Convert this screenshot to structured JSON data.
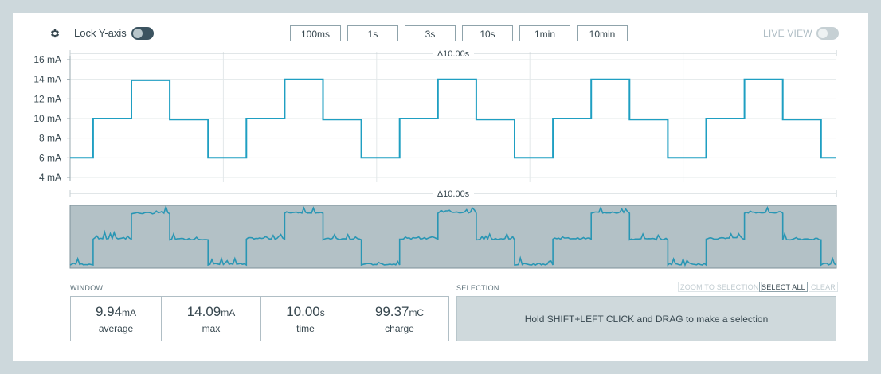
{
  "toolbar": {
    "lock_label": "Lock Y-axis",
    "live_label": "LIVE VIEW",
    "window_buttons": [
      "100ms",
      "1s",
      "3s",
      "10s",
      "1min",
      "10min"
    ],
    "lock_enabled": true,
    "live_enabled": false
  },
  "colors": {
    "trace": "#1f9fc2",
    "minimap_bg": "#b3c1c6",
    "page_bg": "#cdd8dc"
  },
  "chart_data": {
    "type": "line",
    "ylabel": "",
    "y_ticks": [
      "16 mA",
      "14 mA",
      "12 mA",
      "10 mA",
      "8 mA",
      "6 mA",
      "4 mA"
    ],
    "y_tick_values": [
      16,
      14,
      12,
      10,
      8,
      6,
      4
    ],
    "ylim": [
      4,
      16
    ],
    "xlim": [
      0,
      10
    ],
    "x_unit": "s",
    "duration_label": "Δ10.00s",
    "grid": true,
    "series": [
      {
        "x": [
          0,
          0.3,
          0.3,
          0.8,
          0.8,
          1.3,
          1.3,
          1.8,
          1.8,
          2.3,
          2.3,
          2.8,
          2.8,
          3.3,
          3.3,
          3.8,
          3.8,
          4.3,
          4.3,
          4.8,
          4.8,
          5.3,
          5.3,
          5.8,
          5.8,
          6.3,
          6.3,
          6.8,
          6.8,
          7.3,
          7.3,
          7.8,
          7.8,
          8.3,
          8.3,
          8.8,
          8.8,
          9.3,
          9.3,
          9.8,
          9.8,
          10
        ],
        "y": [
          6.0,
          6.0,
          10.0,
          10.0,
          13.9,
          13.9,
          9.9,
          9.9,
          6.0,
          6.0,
          10.0,
          10.0,
          14.0,
          14.0,
          9.9,
          9.9,
          6.0,
          6.0,
          10.0,
          10.0,
          14.0,
          14.0,
          9.9,
          9.9,
          6.0,
          6.0,
          10.0,
          10.0,
          14.0,
          14.0,
          9.9,
          9.9,
          6.0,
          6.0,
          10.0,
          10.0,
          14.0,
          14.0,
          9.9,
          9.9,
          6.0,
          6.0
        ]
      }
    ]
  },
  "window": {
    "label": "WINDOW",
    "stats": [
      {
        "value": "9.94",
        "unit": "mA",
        "label": "average"
      },
      {
        "value": "14.09",
        "unit": "mA",
        "label": "max"
      },
      {
        "value": "10.00",
        "unit": "s",
        "label": "time"
      },
      {
        "value": "99.37",
        "unit": "mC",
        "label": "charge"
      }
    ]
  },
  "selection": {
    "label": "SELECTION",
    "zoom_label": "ZOOM TO SELECTION",
    "select_all_label": "SELECT ALL",
    "clear_label": "CLEAR",
    "hint": "Hold SHIFT+LEFT CLICK and DRAG to make a selection"
  }
}
